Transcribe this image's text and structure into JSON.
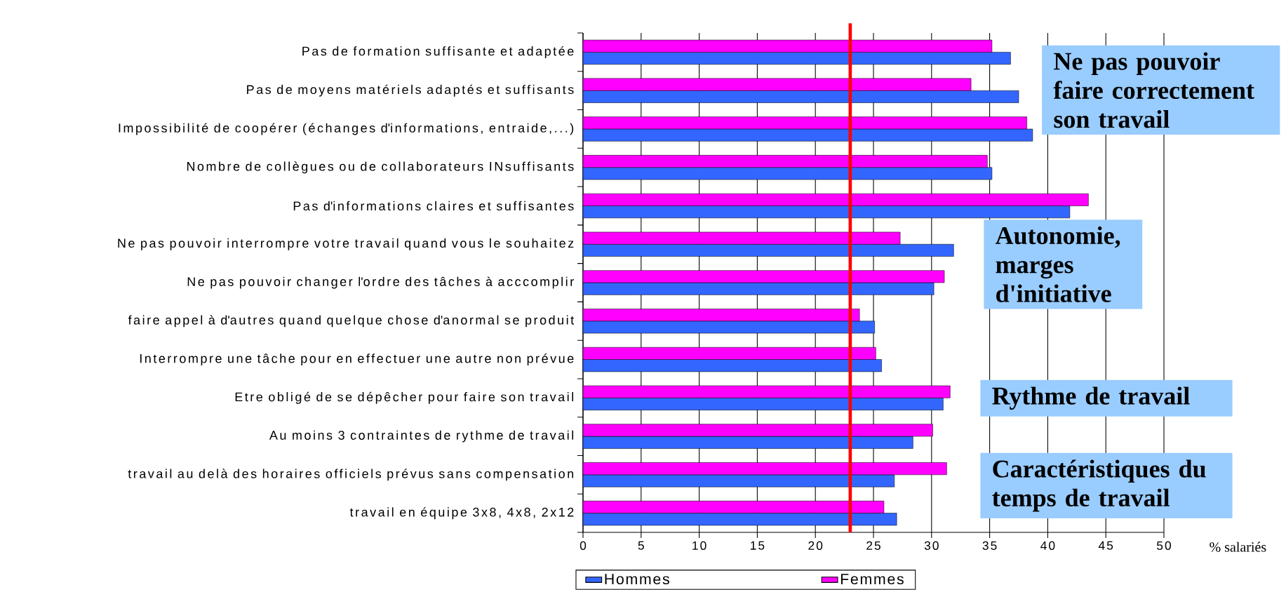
{
  "chart_data": {
    "type": "bar",
    "orientation": "horizontal",
    "xlabel": "% salariés",
    "categories": [
      "Pas de formation suffisante et adaptée",
      "Pas de moyens matériels adaptés et suffisants",
      "Impossibilité de coopérer (échanges d'informations, entraide,...)",
      "Nombre de collègues ou de collaborateurs INsuffisants",
      "Pas d'informations claires et suffisantes",
      "Ne pas pouvoir interrompre votre travail quand vous le souhaitez",
      "Ne pas pouvoir changer l'ordre des tâches à acccomplir",
      "faire appel à d'autres quand quelque chose d'anormal se produit",
      "Interrompre une tâche pour en effectuer une autre non prévue",
      "Etre obligé de se dépêcher pour faire son travail",
      "Au moins 3 contraintes de rythme de travail",
      "travail au delà des horaires officiels prévus sans compensation",
      "travail en équipe 3x8, 4x8, 2x12"
    ],
    "series": [
      {
        "name": "Hommes",
        "color": "#3366ff",
        "values": [
          36.8,
          37.5,
          38.7,
          35.2,
          41.9,
          31.9,
          30.2,
          25.1,
          25.7,
          31.0,
          28.4,
          26.8,
          27.0
        ]
      },
      {
        "name": "Femmes",
        "color": "#ff00ff",
        "values": [
          35.2,
          33.4,
          38.2,
          34.8,
          43.5,
          27.3,
          31.1,
          23.8,
          25.2,
          31.6,
          30.1,
          31.3,
          25.9
        ]
      }
    ],
    "xlim": [
      0,
      50
    ],
    "xticks": [
      0,
      5,
      10,
      15,
      20,
      25,
      30,
      35,
      40,
      45,
      50
    ],
    "grid": "x",
    "legend": "bottom",
    "ref_lines": [
      {
        "axis": "x",
        "value": 23,
        "color": "#ff0000"
      }
    ],
    "annotations": [
      "Ne pas pouvoir faire correctement son travail",
      "Autonomie, marges d'initiative",
      "Rythme de travail",
      "Caractéristiques du temps de travail"
    ]
  }
}
